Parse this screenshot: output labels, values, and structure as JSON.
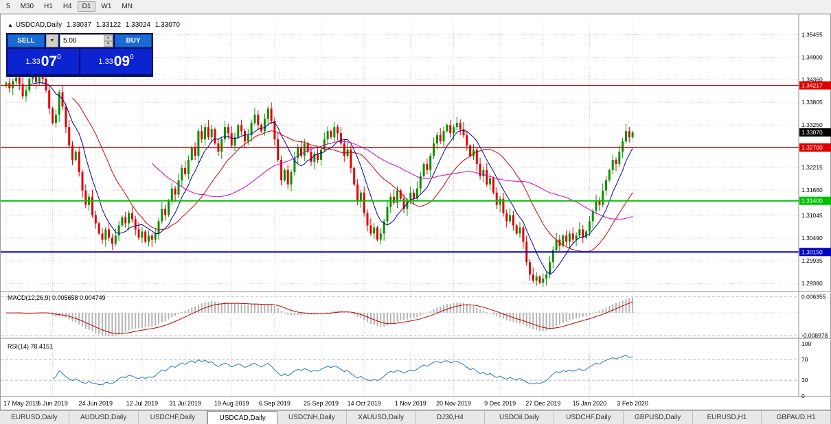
{
  "timeframe_bar": {
    "items": [
      "5",
      "M30",
      "H1",
      "H4",
      "D1",
      "W1",
      "MN"
    ],
    "active": "D1"
  },
  "chart_header": {
    "arrow": "▲",
    "title": "USDCAD,Daily",
    "open": "1.33037",
    "high": "1.33122",
    "low": "1.33024",
    "close": "1.33070"
  },
  "trade_panel": {
    "sell_label": "SELL",
    "buy_label": "BUY",
    "volume": "5.00",
    "sell_price": {
      "prefix": "1.33",
      "big": "07",
      "sup": "0"
    },
    "buy_price": {
      "prefix": "1.33",
      "big": "09",
      "sup": "0"
    }
  },
  "icons": {
    "dropdown_arrow": "▼",
    "spin_up": "▲",
    "spin_down": "▼"
  },
  "indicators": {
    "macd": {
      "label": "MACD(12,26,9) 0.005658 0.004749",
      "axis_top": "0.006355",
      "axis_bottom": "-0.008978"
    },
    "rsi": {
      "label": "RSI(14) 78.4151",
      "axis": [
        "100",
        "70",
        "30",
        "0"
      ]
    }
  },
  "price_axis": {
    "ticks": [
      {
        "label": "1.35455",
        "value": 1.35455
      },
      {
        "label": "1.34900",
        "value": 1.349
      },
      {
        "label": "1.34360",
        "value": 1.3436
      },
      {
        "label": "1.33805",
        "value": 1.33805
      },
      {
        "label": "1.33250",
        "value": 1.3325
      },
      {
        "label": "1.32215",
        "value": 1.32215
      },
      {
        "label": "1.31660",
        "value": 1.3166
      },
      {
        "label": "1.31045",
        "value": 1.31045
      },
      {
        "label": "1.30490",
        "value": 1.3049
      },
      {
        "label": "1.29935",
        "value": 1.29935
      },
      {
        "label": "1.29380",
        "value": 1.2938
      }
    ],
    "lines": [
      {
        "label": "1.34217",
        "value": 1.34217,
        "color": "#dd0000",
        "width": 1
      },
      {
        "label": "1.32700",
        "value": 1.327,
        "color": "#dd0000",
        "width": 1.5
      },
      {
        "label": "1.31400",
        "value": 1.314,
        "color": "#00c300",
        "width": 2
      },
      {
        "label": "1.30150",
        "value": 1.3015,
        "color": "#0000c0",
        "width": 2
      }
    ],
    "current": {
      "label": "1.33070",
      "value": 1.3307,
      "color": "#000000"
    }
  },
  "date_axis": {
    "labels": [
      "17 May 2019",
      "5 Jun 2019",
      "24 Jun 2019",
      "12 Jul 2019",
      "31 Jul 2019",
      "19 Aug 2019",
      "6 Sep 2019",
      "25 Sep 2019",
      "14 Oct 2019",
      "1 Nov 2019",
      "20 Nov 2019",
      "9 Dec 2019",
      "27 Dec 2019",
      "15 Jan 2020",
      "3 Feb 2020"
    ],
    "candle_indices": [
      0,
      14,
      27,
      41,
      54,
      68,
      81,
      95,
      108,
      122,
      135,
      149,
      162,
      176,
      189
    ]
  },
  "tabs": {
    "items": [
      "EURUSD,Daily",
      "AUDUSD,Daily",
      "USDCHF,Daily",
      "USDCAD,Daily",
      "USDCNH,Daily",
      "XAUUSD,Daily",
      "DJ30,H4",
      "USDOil,Daily",
      "USDCHF,Daily",
      "GBPUSD,Daily",
      "EURUSD,H1",
      "GBPAUD,H1"
    ],
    "active_index": 3
  },
  "chart_data": {
    "type": "candlestick",
    "symbol": "USDCAD",
    "timeframe": "Daily",
    "ohlc_current": {
      "open": 1.33037,
      "high": 1.33122,
      "low": 1.33024,
      "close": 1.3307
    },
    "y_axis_range": [
      1.2925,
      1.3585
    ],
    "grid": true,
    "first_open": 1.342,
    "closes": [
      1.3428,
      1.3415,
      1.3432,
      1.3441,
      1.3425,
      1.3395,
      1.341,
      1.3438,
      1.3445,
      1.343,
      1.3442,
      1.3438,
      1.341,
      1.3365,
      1.333,
      1.335,
      1.3405,
      1.337,
      1.332,
      1.3275,
      1.324,
      1.326,
      1.321,
      1.3165,
      1.313,
      1.315,
      1.3105,
      1.3085,
      1.306,
      1.3045,
      1.307,
      1.305,
      1.3035,
      1.3055,
      1.308,
      1.31,
      1.3085,
      1.311,
      1.3095,
      1.307,
      1.305,
      1.3065,
      1.304,
      1.3055,
      1.3045,
      1.306,
      1.309,
      1.312,
      1.3105,
      1.314,
      1.317,
      1.3155,
      1.319,
      1.322,
      1.3205,
      1.324,
      1.327,
      1.325,
      1.331,
      1.329,
      1.332,
      1.3295,
      1.3315,
      1.328,
      1.326,
      1.329,
      1.332,
      1.3305,
      1.3275,
      1.3295,
      1.3325,
      1.331,
      1.3285,
      1.33,
      1.333,
      1.335,
      1.3325,
      1.331,
      1.334,
      1.3365,
      1.3335,
      1.329,
      1.324,
      1.319,
      1.3215,
      1.318,
      1.321,
      1.3245,
      1.327,
      1.325,
      1.328,
      1.326,
      1.3235,
      1.3255,
      1.324,
      1.3265,
      1.329,
      1.331,
      1.3295,
      1.332,
      1.3305,
      1.328,
      1.325,
      1.3265,
      1.322,
      1.318,
      1.314,
      1.316,
      1.311,
      1.308,
      1.306,
      1.3075,
      1.3045,
      1.306,
      1.309,
      1.3125,
      1.315,
      1.3135,
      1.3165,
      1.3145,
      1.312,
      1.314,
      1.316,
      1.3145,
      1.317,
      1.32,
      1.323,
      1.3215,
      1.325,
      1.328,
      1.33,
      1.3285,
      1.331,
      1.3325,
      1.3305,
      1.332,
      1.333,
      1.3315,
      1.33,
      1.3275,
      1.325,
      1.3265,
      1.323,
      1.32,
      1.3215,
      1.318,
      1.3195,
      1.316,
      1.313,
      1.3145,
      1.311,
      1.309,
      1.3105,
      1.308,
      1.306,
      1.3075,
      1.304,
      1.299,
      1.296,
      1.2945,
      1.2955,
      1.294,
      1.295,
      1.296,
      1.299,
      1.302,
      1.3045,
      1.303,
      1.3055,
      1.304,
      1.306,
      1.3045,
      1.3055,
      1.307,
      1.305,
      1.3065,
      1.309,
      1.3115,
      1.314,
      1.313,
      1.3165,
      1.319,
      1.3215,
      1.324,
      1.323,
      1.326,
      1.3285,
      1.331,
      1.3295,
      1.3307
    ],
    "moving_averages": [
      {
        "period": 8,
        "color": "#0000a0"
      },
      {
        "period": 21,
        "color": "#cc0000"
      },
      {
        "period": 45,
        "color": "#cc00cc"
      }
    ],
    "indicator_data": {
      "macd": {
        "fast": 12,
        "slow": 26,
        "signal": 9,
        "current": 0.005658,
        "current_signal": 0.004749,
        "axis_max": 0.006355,
        "axis_min": -0.008978
      },
      "rsi": {
        "period": 14,
        "current": 78.4151,
        "levels": [
          70,
          30
        ],
        "range": [
          0,
          100
        ]
      }
    }
  }
}
